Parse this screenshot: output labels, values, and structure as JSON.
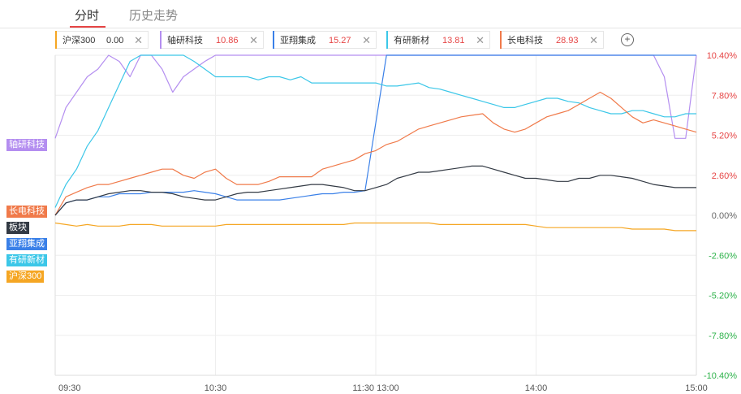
{
  "tabs": {
    "active": "分时",
    "history": "历史走势"
  },
  "stocks": [
    {
      "name": "沪深300",
      "value": "0.00",
      "color": "#f5a623"
    },
    {
      "name": "轴研科技",
      "value": "10.86",
      "color": "#b48ef0"
    },
    {
      "name": "亚翔集成",
      "value": "15.27",
      "color": "#3a80e8"
    },
    {
      "name": "有研新材",
      "value": "13.81",
      "color": "#3cc7e8"
    },
    {
      "name": "长电科技",
      "value": "28.93",
      "color": "#f07a4a"
    }
  ],
  "add_icon": "plus-circle-icon",
  "close_icon": "close-icon",
  "side_labels": [
    {
      "text": "轴研科技",
      "color": "#b48ef0"
    },
    {
      "text": "长电科技",
      "color": "#f07a4a"
    },
    {
      "text": "板块",
      "color": "#333a44"
    },
    {
      "text": "亚翔集成",
      "color": "#3a80e8"
    },
    {
      "text": "有研新材",
      "color": "#3cc7e8"
    },
    {
      "text": "沪深300",
      "color": "#f5a623"
    }
  ],
  "chart_data": {
    "type": "line",
    "x_ticks": [
      "09:30",
      "10:30",
      "11:30 13:00",
      "14:00",
      "15:00"
    ],
    "y_ticks": [
      "10.40%",
      "7.80%",
      "5.20%",
      "2.60%",
      "0.00%",
      "-2.60%",
      "-5.20%",
      "-7.80%",
      "-10.40%"
    ],
    "ylim": [
      -10.4,
      10.4
    ],
    "grid": true,
    "positive_color": "#e64545",
    "negative_color": "#2db24a",
    "zero_color": "#666666",
    "x": [
      0,
      4,
      8,
      12,
      16,
      20,
      24,
      28,
      32,
      36,
      40,
      44,
      48,
      52,
      56,
      60,
      64,
      68,
      72,
      76,
      80,
      84,
      88,
      92,
      96,
      100,
      104,
      108,
      112,
      116,
      120,
      124,
      128,
      132,
      136,
      140,
      144,
      148,
      152,
      156,
      160,
      164,
      168,
      172,
      176,
      180,
      184,
      188,
      192,
      196,
      200,
      204,
      208,
      212,
      216,
      220,
      224,
      228,
      232,
      236,
      240
    ],
    "series": [
      {
        "name": "轴研科技",
        "color": "#b48ef0",
        "values": [
          5.0,
          7.0,
          8.0,
          9.0,
          9.5,
          10.4,
          10.0,
          9.0,
          10.4,
          10.4,
          9.5,
          8.0,
          9.0,
          9.5,
          10.0,
          10.4,
          10.4,
          10.4,
          10.4,
          10.4,
          10.4,
          10.4,
          10.4,
          10.4,
          10.4,
          10.4,
          10.4,
          10.4,
          10.4,
          10.4,
          10.4,
          10.4,
          10.4,
          10.4,
          10.4,
          10.4,
          10.4,
          10.4,
          10.4,
          10.4,
          10.4,
          10.4,
          10.4,
          10.4,
          10.4,
          10.4,
          10.4,
          10.4,
          10.4,
          10.4,
          10.4,
          10.4,
          10.4,
          10.4,
          10.4,
          10.4,
          10.4,
          9.0,
          5.0,
          5.0,
          10.4
        ]
      },
      {
        "name": "亚翔集成",
        "color": "#3a80e8",
        "values": [
          0.0,
          0.8,
          1.0,
          1.0,
          1.2,
          1.2,
          1.4,
          1.4,
          1.4,
          1.5,
          1.5,
          1.5,
          1.5,
          1.6,
          1.5,
          1.4,
          1.2,
          1.0,
          1.0,
          1.0,
          1.0,
          1.0,
          1.1,
          1.2,
          1.3,
          1.4,
          1.4,
          1.5,
          1.5,
          1.6,
          6.0,
          10.4,
          10.4,
          10.4,
          10.4,
          10.4,
          10.4,
          10.4,
          10.4,
          10.4,
          10.4,
          10.4,
          10.4,
          10.4,
          10.4,
          10.4,
          10.4,
          10.4,
          10.4,
          10.4,
          10.4,
          10.4,
          10.4,
          10.4,
          10.4,
          10.4,
          10.4,
          10.4,
          10.4,
          10.4,
          10.4
        ]
      },
      {
        "name": "有研新材",
        "color": "#3cc7e8",
        "values": [
          0.5,
          2.0,
          3.0,
          4.5,
          5.5,
          7.0,
          8.5,
          10.0,
          10.4,
          10.4,
          10.4,
          10.4,
          10.4,
          10.0,
          9.5,
          9.0,
          9.0,
          9.0,
          9.0,
          8.8,
          9.0,
          9.0,
          8.8,
          9.0,
          8.6,
          8.6,
          8.6,
          8.6,
          8.6,
          8.6,
          8.6,
          8.4,
          8.4,
          8.5,
          8.6,
          8.3,
          8.2,
          8.0,
          7.8,
          7.6,
          7.4,
          7.2,
          7.0,
          7.0,
          7.2,
          7.4,
          7.6,
          7.6,
          7.4,
          7.3,
          7.0,
          6.8,
          6.6,
          6.6,
          6.8,
          6.8,
          6.6,
          6.4,
          6.4,
          6.6,
          6.6
        ]
      },
      {
        "name": "长电科技",
        "color": "#f07a4a",
        "values": [
          0.0,
          1.2,
          1.5,
          1.8,
          2.0,
          2.0,
          2.2,
          2.4,
          2.6,
          2.8,
          3.0,
          3.0,
          2.6,
          2.4,
          2.8,
          3.0,
          2.4,
          2.0,
          2.0,
          2.0,
          2.2,
          2.5,
          2.5,
          2.5,
          2.5,
          3.0,
          3.2,
          3.4,
          3.6,
          4.0,
          4.2,
          4.6,
          4.8,
          5.2,
          5.6,
          5.8,
          6.0,
          6.2,
          6.4,
          6.5,
          6.6,
          6.0,
          5.6,
          5.4,
          5.6,
          6.0,
          6.4,
          6.6,
          6.8,
          7.2,
          7.6,
          8.0,
          7.6,
          7.0,
          6.4,
          6.0,
          6.2,
          6.0,
          5.8,
          5.6,
          5.4
        ]
      },
      {
        "name": "板块",
        "color": "#333a44",
        "values": [
          0.0,
          0.8,
          1.0,
          1.0,
          1.2,
          1.4,
          1.5,
          1.6,
          1.6,
          1.5,
          1.5,
          1.4,
          1.2,
          1.1,
          1.0,
          1.0,
          1.2,
          1.4,
          1.5,
          1.5,
          1.6,
          1.7,
          1.8,
          1.9,
          2.0,
          2.0,
          1.9,
          1.8,
          1.6,
          1.6,
          1.8,
          2.0,
          2.4,
          2.6,
          2.8,
          2.8,
          2.9,
          3.0,
          3.1,
          3.2,
          3.2,
          3.0,
          2.8,
          2.6,
          2.4,
          2.4,
          2.3,
          2.2,
          2.2,
          2.4,
          2.4,
          2.6,
          2.6,
          2.5,
          2.4,
          2.2,
          2.0,
          1.9,
          1.8,
          1.8,
          1.8
        ]
      },
      {
        "name": "沪深300",
        "color": "#f5a623",
        "values": [
          -0.5,
          -0.6,
          -0.7,
          -0.6,
          -0.7,
          -0.7,
          -0.7,
          -0.6,
          -0.6,
          -0.6,
          -0.7,
          -0.7,
          -0.7,
          -0.7,
          -0.7,
          -0.7,
          -0.6,
          -0.6,
          -0.6,
          -0.6,
          -0.6,
          -0.6,
          -0.6,
          -0.6,
          -0.6,
          -0.6,
          -0.6,
          -0.6,
          -0.5,
          -0.5,
          -0.5,
          -0.5,
          -0.5,
          -0.5,
          -0.5,
          -0.5,
          -0.6,
          -0.6,
          -0.6,
          -0.6,
          -0.6,
          -0.6,
          -0.6,
          -0.6,
          -0.6,
          -0.7,
          -0.8,
          -0.8,
          -0.8,
          -0.8,
          -0.8,
          -0.8,
          -0.8,
          -0.8,
          -0.9,
          -0.9,
          -0.9,
          -0.9,
          -1.0,
          -1.0,
          -1.0
        ]
      }
    ]
  }
}
